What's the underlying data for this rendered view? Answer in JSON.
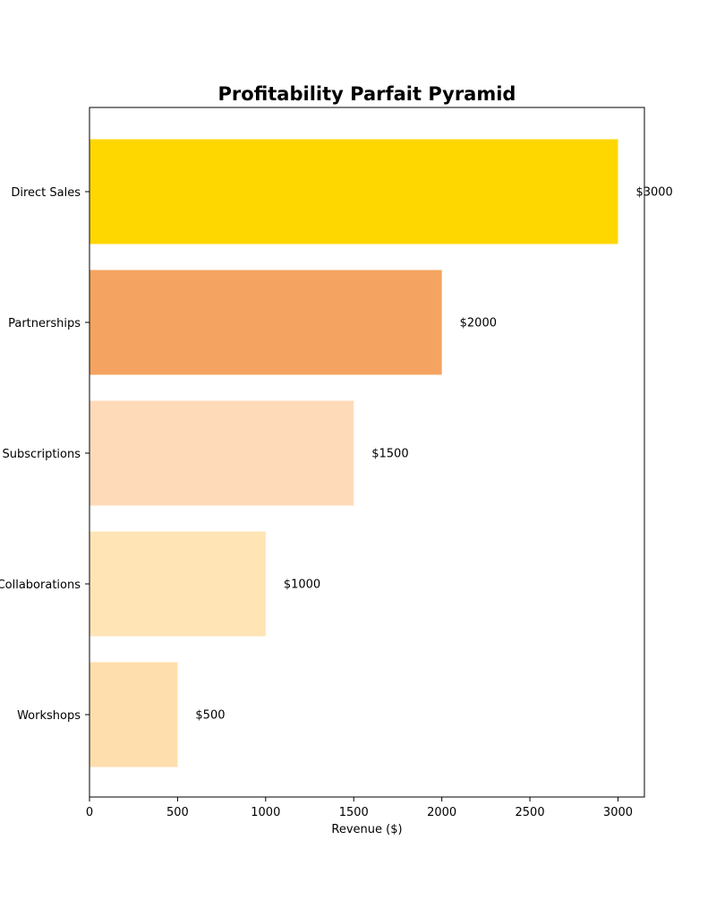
{
  "chart_data": {
    "type": "bar",
    "orientation": "horizontal",
    "title": "Profitability Parfait Pyramid",
    "xlabel": "Revenue ($)",
    "ylabel": "",
    "categories": [
      "Direct Sales",
      "Partnerships",
      "Subscriptions",
      "Collaborations",
      "Workshops"
    ],
    "values": [
      3000,
      2000,
      1500,
      1000,
      500
    ],
    "data_labels": [
      "$3000",
      "$2000",
      "$1500",
      "$1000",
      "$500"
    ],
    "colors": [
      "#FFD700",
      "#F4A460",
      "#FFDAB9",
      "#FFE4B5",
      "#FFDEAD"
    ],
    "xlim": [
      0,
      3150
    ],
    "xticks": [
      0,
      500,
      1000,
      1500,
      2000,
      2500,
      3000
    ],
    "grid": false,
    "legend": "none"
  }
}
